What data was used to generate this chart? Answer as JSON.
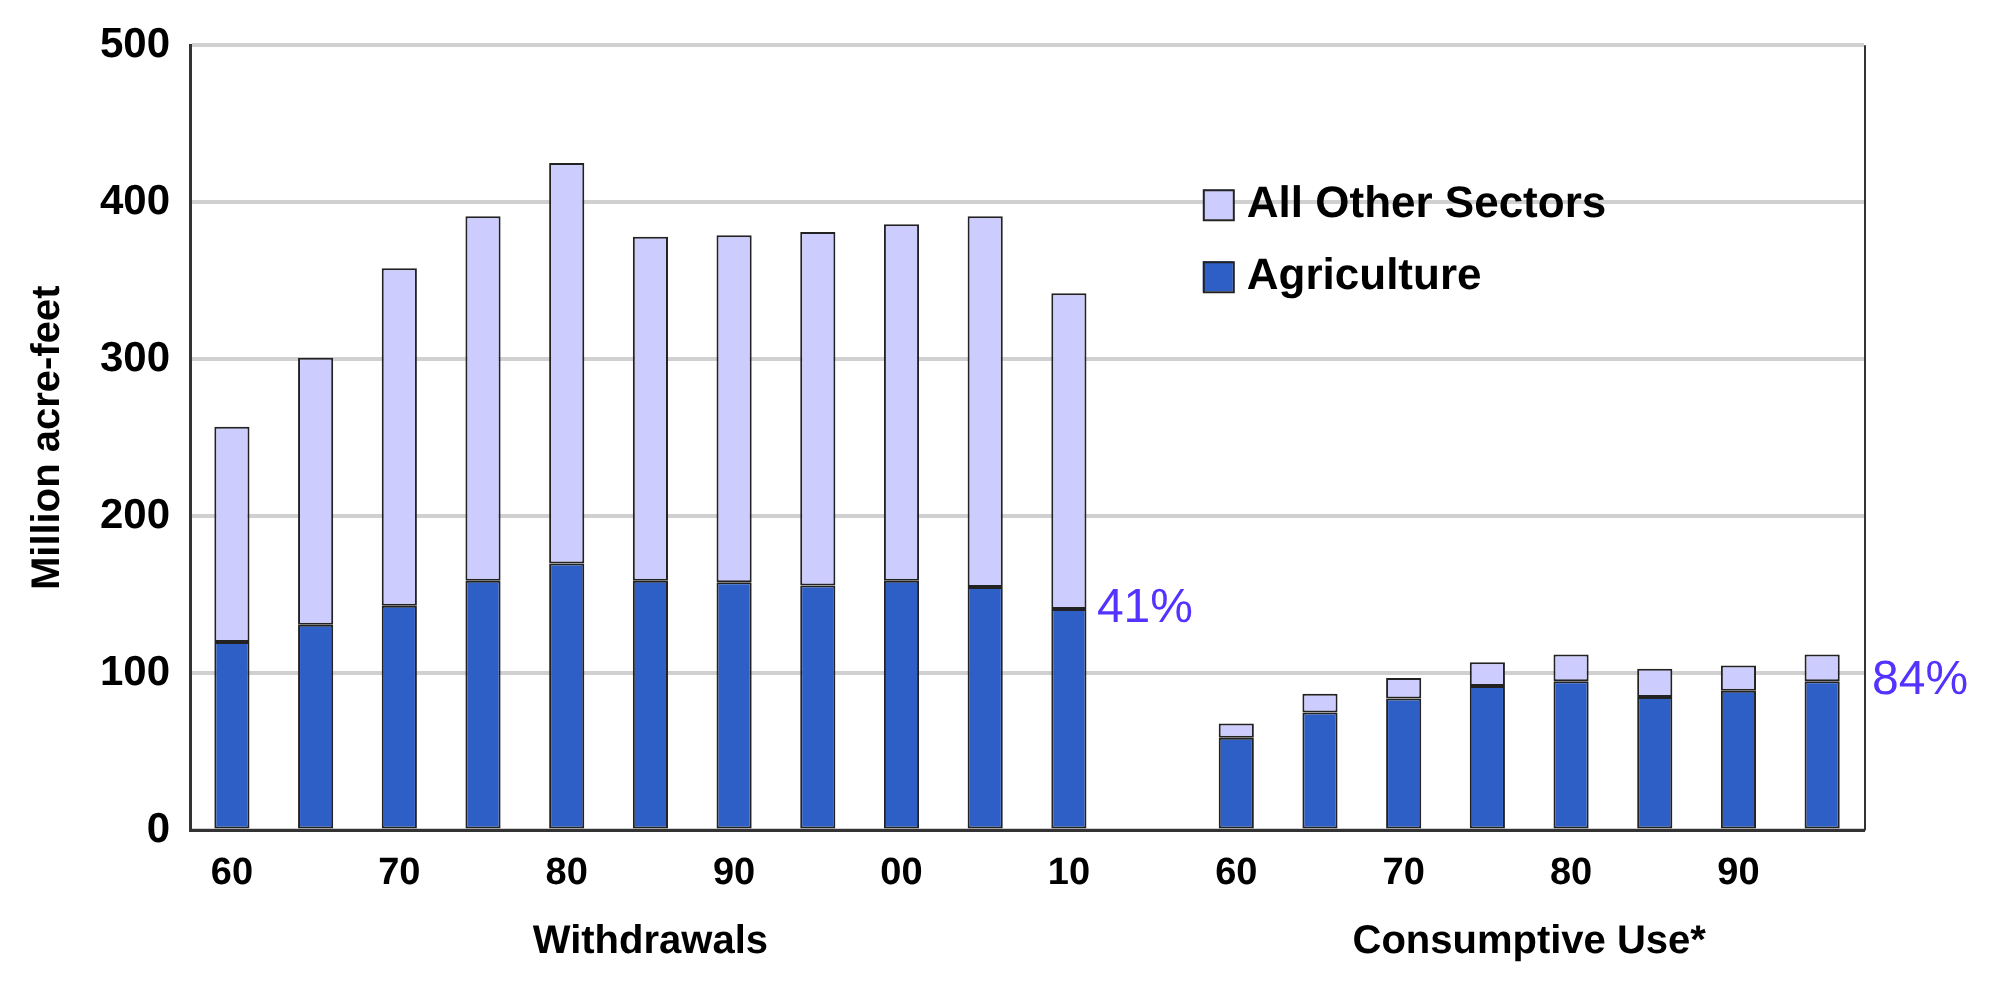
{
  "chart_data": {
    "type": "bar",
    "stacked": true,
    "ylabel": "Million acre-feet",
    "categories": [
      "60",
      null,
      "70",
      null,
      "80",
      null,
      "90",
      null,
      "00",
      null,
      "10",
      null,
      "60",
      null,
      "70",
      null,
      "80",
      null,
      "90",
      null
    ],
    "series": [
      {
        "name": "Agriculture",
        "color": "#2e5fc6",
        "values": [
          120,
          131,
          143,
          159,
          170,
          159,
          158,
          156,
          159,
          155,
          141,
          null,
          59,
          75,
          84,
          92,
          95,
          85,
          89,
          95
        ]
      },
      {
        "name": "All Other Sectors",
        "color": "#ccccff",
        "values": [
          137,
          170,
          215,
          232,
          255,
          219,
          221,
          225,
          227,
          236,
          201,
          null,
          9,
          12,
          13,
          15,
          17,
          18,
          16,
          17
        ]
      }
    ],
    "ylim": [
      0,
      500
    ],
    "yticks": [
      0,
      100,
      200,
      300,
      400,
      500
    ],
    "grid": "y",
    "legend": "top right",
    "annotations": [
      "41%",
      "84%",
      "Withdrawals",
      "Consumptive Use*"
    ]
  }
}
